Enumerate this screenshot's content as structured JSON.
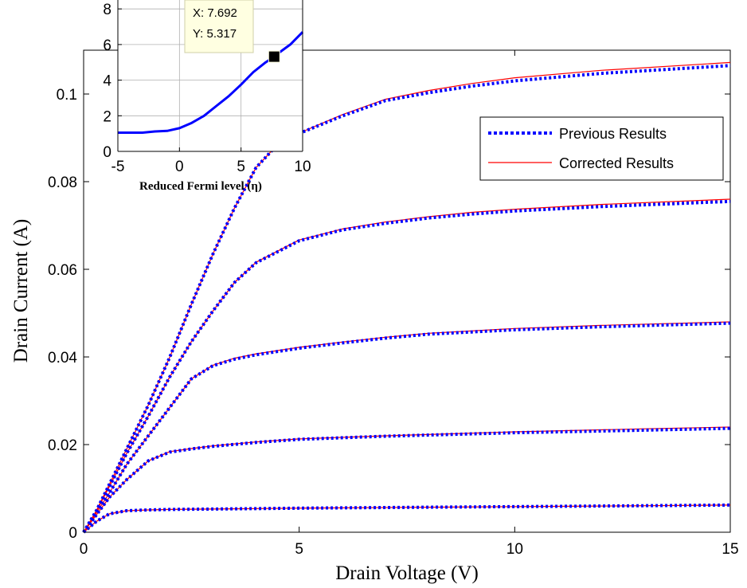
{
  "chart_data": [
    {
      "type": "line",
      "xlabel": "Drain Voltage (V)",
      "ylabel": "Drain Current (A)",
      "xlim": [
        0,
        15
      ],
      "ylim": [
        0,
        0.11
      ],
      "xticks": [
        "0",
        "5",
        "10",
        "15"
      ],
      "yticks": [
        "0",
        "0.02",
        "0.04",
        "0.06",
        "0.08",
        "0.1"
      ],
      "xtick_values": [
        0,
        5,
        10,
        15
      ],
      "ytick_values": [
        0,
        0.02,
        0.04,
        0.06,
        0.08,
        0.1
      ],
      "grid": false,
      "legend_position": "top-right",
      "series": [
        {
          "name": "Previous Results",
          "style": "dotted",
          "color": "#0000ff",
          "curves": [
            [
              [
                0,
                0
              ],
              [
                0.3,
                0.0025
              ],
              [
                0.6,
                0.0042
              ],
              [
                1,
                0.0049
              ],
              [
                1.5,
                0.0051
              ],
              [
                2,
                0.0052
              ],
              [
                3,
                0.0053
              ],
              [
                5,
                0.0055
              ],
              [
                8,
                0.0057
              ],
              [
                11,
                0.0059
              ],
              [
                15,
                0.0062
              ]
            ],
            [
              [
                0,
                0
              ],
              [
                0.3,
                0.004
              ],
              [
                0.6,
                0.008
              ],
              [
                1,
                0.012
              ],
              [
                1.5,
                0.0163
              ],
              [
                2,
                0.0183
              ],
              [
                2.5,
                0.019
              ],
              [
                3,
                0.0196
              ],
              [
                4,
                0.0205
              ],
              [
                5,
                0.0212
              ],
              [
                7,
                0.0219
              ],
              [
                10,
                0.0227
              ],
              [
                13,
                0.0233
              ],
              [
                15,
                0.0237
              ]
            ],
            [
              [
                0,
                0
              ],
              [
                0.3,
                0.0045
              ],
              [
                0.6,
                0.009
              ],
              [
                1,
                0.0155
              ],
              [
                1.5,
                0.022
              ],
              [
                2,
                0.0285
              ],
              [
                2.5,
                0.035
              ],
              [
                3,
                0.038
              ],
              [
                3.5,
                0.0395
              ],
              [
                4,
                0.0405
              ],
              [
                5,
                0.042
              ],
              [
                6,
                0.0432
              ],
              [
                7,
                0.0443
              ],
              [
                8,
                0.0452
              ],
              [
                10,
                0.0462
              ],
              [
                12,
                0.0469
              ],
              [
                15,
                0.0477
              ]
            ],
            [
              [
                0,
                0
              ],
              [
                0.3,
                0.0048
              ],
              [
                0.6,
                0.0105
              ],
              [
                1,
                0.018
              ],
              [
                1.5,
                0.0265
              ],
              [
                2,
                0.0355
              ],
              [
                2.5,
                0.0435
              ],
              [
                3,
                0.0505
              ],
              [
                3.5,
                0.057
              ],
              [
                4,
                0.0615
              ],
              [
                5,
                0.0665
              ],
              [
                6,
                0.069
              ],
              [
                7,
                0.0705
              ],
              [
                8,
                0.0717
              ],
              [
                9,
                0.0726
              ],
              [
                10,
                0.0733
              ],
              [
                12,
                0.0743
              ],
              [
                15,
                0.0755
              ]
            ],
            [
              [
                0,
                0
              ],
              [
                0.3,
                0.005
              ],
              [
                0.6,
                0.011
              ],
              [
                1,
                0.019
              ],
              [
                1.5,
                0.029
              ],
              [
                2,
                0.04
              ],
              [
                2.5,
                0.052
              ],
              [
                3,
                0.0635
              ],
              [
                3.5,
                0.074
              ],
              [
                4,
                0.0832
              ],
              [
                4.5,
                0.0885
              ],
              [
                5,
                0.091
              ],
              [
                6,
                0.095
              ],
              [
                7,
                0.0985
              ],
              [
                8,
                0.1003
              ],
              [
                9,
                0.1018
              ],
              [
                10,
                0.103
              ],
              [
                12,
                0.1047
              ],
              [
                15,
                0.1065
              ]
            ]
          ]
        },
        {
          "name": "Corrected Results",
          "style": "solid",
          "color": "#ff0000",
          "curves": [
            [
              [
                0,
                0
              ],
              [
                0.3,
                0.0025
              ],
              [
                0.6,
                0.0042
              ],
              [
                1,
                0.0049
              ],
              [
                1.5,
                0.0051
              ],
              [
                2,
                0.0052
              ],
              [
                3,
                0.0053
              ],
              [
                5,
                0.0055
              ],
              [
                8,
                0.0057
              ],
              [
                11,
                0.0059
              ],
              [
                15,
                0.0062
              ]
            ],
            [
              [
                0,
                0
              ],
              [
                0.3,
                0.004
              ],
              [
                0.6,
                0.008
              ],
              [
                1,
                0.012
              ],
              [
                1.5,
                0.0163
              ],
              [
                2,
                0.0184
              ],
              [
                2.5,
                0.0191
              ],
              [
                3,
                0.0197
              ],
              [
                4,
                0.0206
              ],
              [
                5,
                0.0213
              ],
              [
                7,
                0.022
              ],
              [
                10,
                0.0229
              ],
              [
                13,
                0.0236
              ],
              [
                15,
                0.024
              ]
            ],
            [
              [
                0,
                0
              ],
              [
                0.3,
                0.0045
              ],
              [
                0.6,
                0.009
              ],
              [
                1,
                0.0155
              ],
              [
                1.5,
                0.022
              ],
              [
                2,
                0.0285
              ],
              [
                2.5,
                0.035
              ],
              [
                3,
                0.0381
              ],
              [
                3.5,
                0.0397
              ],
              [
                4,
                0.0407
              ],
              [
                5,
                0.0422
              ],
              [
                6,
                0.0434
              ],
              [
                7,
                0.0445
              ],
              [
                8,
                0.0454
              ],
              [
                10,
                0.0465
              ],
              [
                12,
                0.0472
              ],
              [
                15,
                0.048
              ]
            ],
            [
              [
                0,
                0
              ],
              [
                0.3,
                0.0048
              ],
              [
                0.6,
                0.0105
              ],
              [
                1,
                0.018
              ],
              [
                1.5,
                0.0265
              ],
              [
                2,
                0.0355
              ],
              [
                2.5,
                0.0435
              ],
              [
                3,
                0.0505
              ],
              [
                3.5,
                0.057
              ],
              [
                4,
                0.0616
              ],
              [
                5,
                0.0667
              ],
              [
                6,
                0.0692
              ],
              [
                7,
                0.0708
              ],
              [
                8,
                0.072
              ],
              [
                9,
                0.073
              ],
              [
                10,
                0.0737
              ],
              [
                12,
                0.0748
              ],
              [
                15,
                0.076
              ]
            ],
            [
              [
                0,
                0
              ],
              [
                0.3,
                0.005
              ],
              [
                0.6,
                0.011
              ],
              [
                1,
                0.019
              ],
              [
                1.5,
                0.029
              ],
              [
                2,
                0.04
              ],
              [
                2.5,
                0.052
              ],
              [
                3,
                0.0635
              ],
              [
                3.5,
                0.074
              ],
              [
                4,
                0.0832
              ],
              [
                4.5,
                0.0885
              ],
              [
                5,
                0.0911
              ],
              [
                6,
                0.0953
              ],
              [
                7,
                0.0988
              ],
              [
                8,
                0.1008
              ],
              [
                9,
                0.1024
              ],
              [
                10,
                0.1037
              ],
              [
                12,
                0.1054
              ],
              [
                15,
                0.1072
              ]
            ]
          ]
        }
      ]
    },
    {
      "type": "line",
      "xlabel": "Reduced Fermi level (η)",
      "ylabel": "",
      "xlim": [
        -5,
        10
      ],
      "ylim": [
        0,
        8.5
      ],
      "xticks": [
        "-5",
        "0",
        "5",
        "10"
      ],
      "yticks": [
        "0",
        "2",
        "4",
        "6",
        "8"
      ],
      "xtick_values": [
        -5,
        0,
        5,
        10
      ],
      "ytick_values": [
        0,
        2,
        4,
        6,
        8
      ],
      "grid": true,
      "series": [
        {
          "color": "#0000ff",
          "x": [
            -5,
            -4,
            -3,
            -2,
            -1,
            0,
            1,
            2,
            3,
            4,
            5,
            6,
            7,
            7.692,
            8,
            9,
            10
          ],
          "y": [
            1.05,
            1.05,
            1.05,
            1.12,
            1.15,
            1.3,
            1.6,
            2.0,
            2.55,
            3.1,
            3.75,
            4.45,
            5.0,
            5.317,
            5.5,
            6.0,
            6.7
          ]
        }
      ],
      "datatip": {
        "x_text": "X: 7.692",
        "y_text": "Y: 5.317",
        "x": 7.692,
        "y": 5.317
      }
    }
  ]
}
